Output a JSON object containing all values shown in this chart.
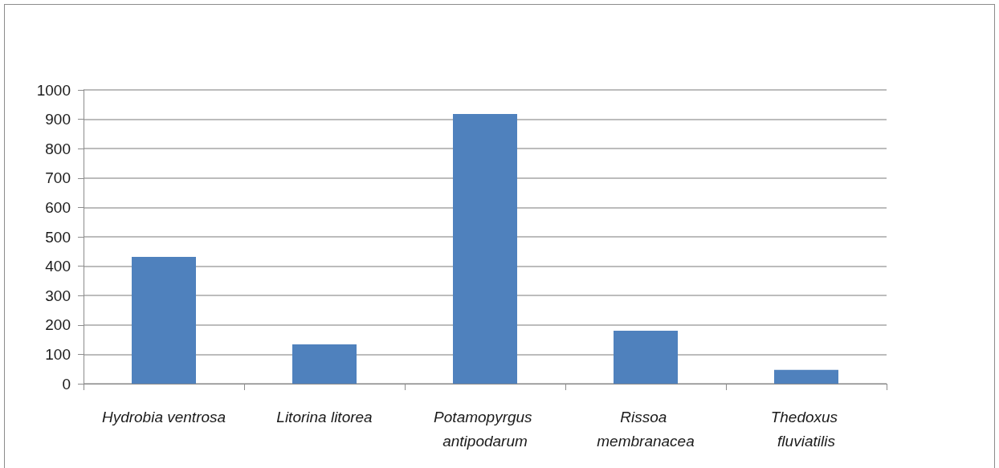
{
  "chart_data": {
    "type": "bar",
    "categories": [
      "Hydrobia ventrosa",
      "Litorina litorea",
      "Potamopyrgus antipodarum",
      "Rissoa membranacea",
      "Thedoxus fluviatilis"
    ],
    "values": [
      432,
      134,
      918,
      180,
      47
    ],
    "color": "#4f81bd",
    "ylim": [
      0,
      1000
    ],
    "yticks": [
      0,
      100,
      200,
      300,
      400,
      500,
      600,
      700,
      800,
      900,
      1000
    ],
    "grid": "y"
  }
}
